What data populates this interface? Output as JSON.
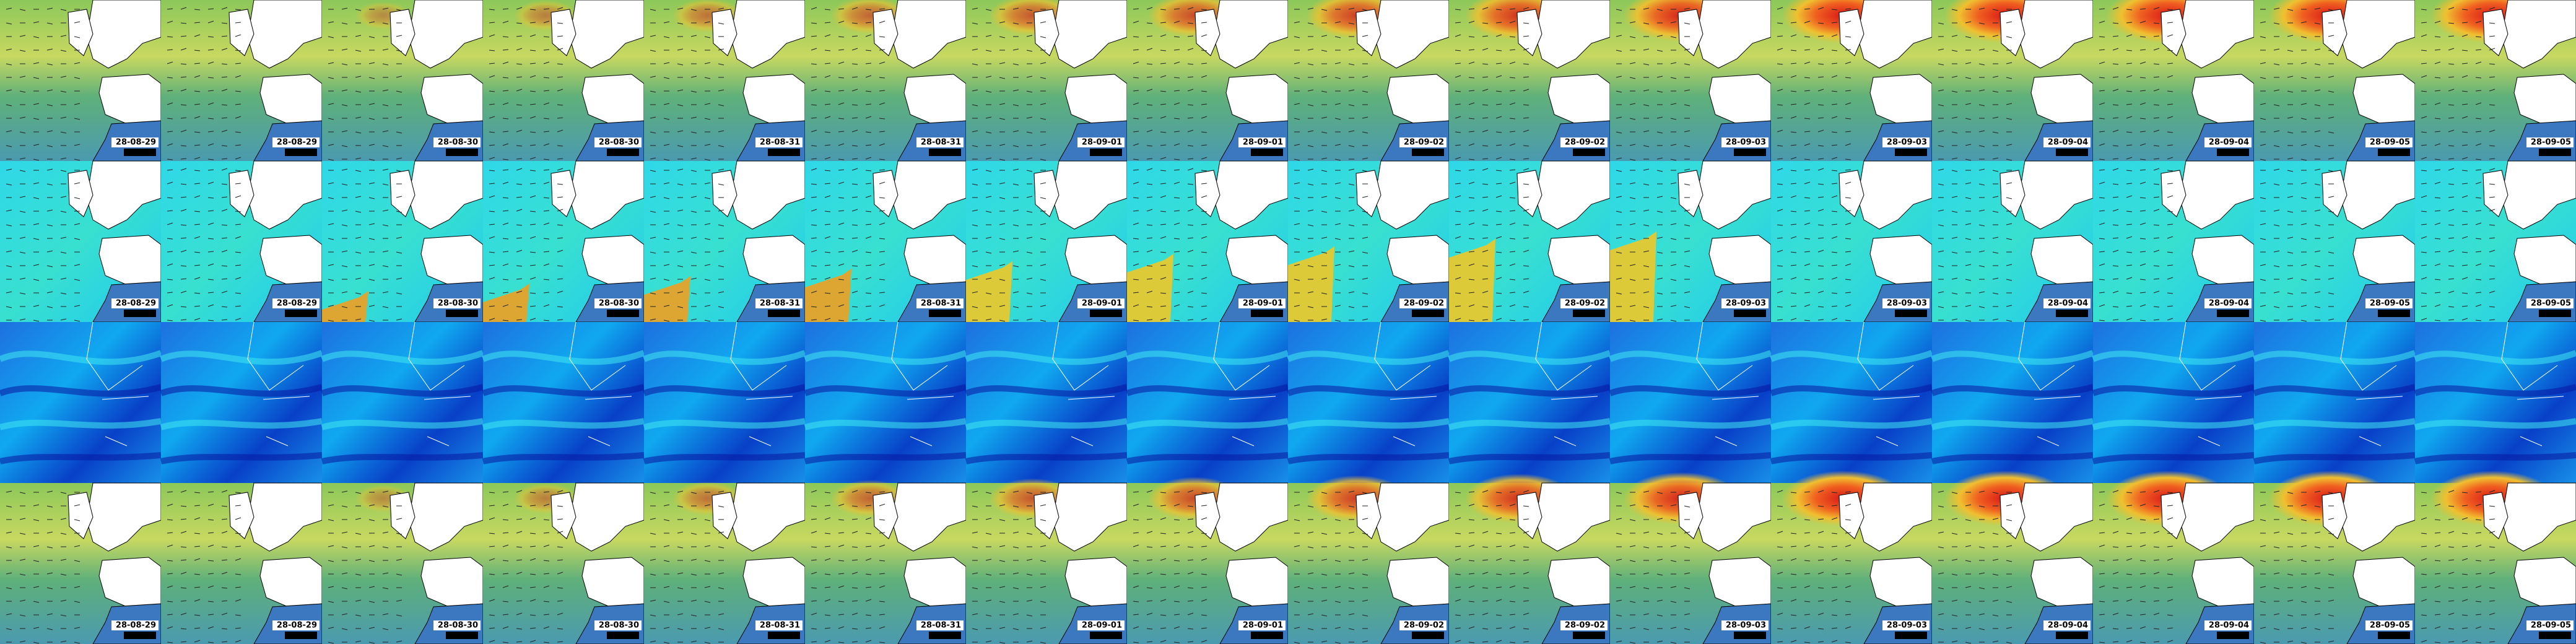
{
  "dates": [
    "28-08-29",
    "28-08-29",
    "28-08-30",
    "28-08-30",
    "28-08-31",
    "28-08-31",
    "28-09-01",
    "28-09-01",
    "28-09-02",
    "28-09-02",
    "28-09-03",
    "28-09-03",
    "28-09-04",
    "28-09-04",
    "28-09-05",
    "28-09-05"
  ]
}
